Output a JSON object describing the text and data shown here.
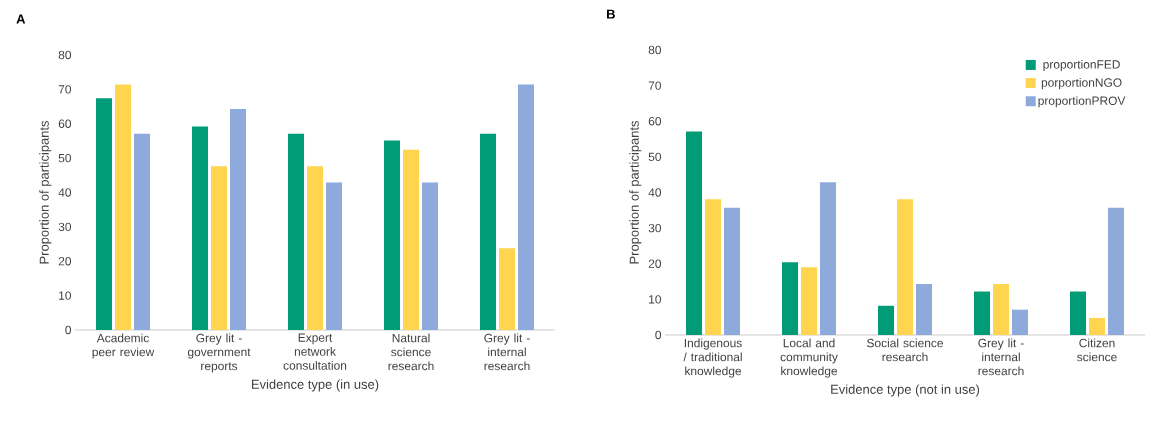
{
  "chart_data": [
    {
      "type": "bar",
      "title": "A",
      "xlabel": "Evidence type (in use)",
      "ylabel": "Proportion of participants",
      "categories": [
        "Academic peer review",
        "Grey lit - government reports",
        "Expert network consultation",
        "Natural science research",
        "Grey lit - internal research"
      ],
      "series": [
        {
          "color": "#009b77",
          "values": [
            67.4,
            59.2,
            57.1,
            55.1,
            57.1
          ]
        },
        {
          "color": "#ffd54f",
          "values": [
            71.4,
            47.6,
            47.6,
            52.4,
            23.8
          ]
        },
        {
          "color": "#8eaadb",
          "values": [
            57.1,
            64.3,
            42.9,
            42.9,
            71.4
          ]
        }
      ],
      "ylim": [
        0,
        80
      ],
      "yticks": [
        0,
        10,
        20,
        30,
        40,
        50,
        60,
        70,
        80
      ]
    },
    {
      "type": "bar",
      "title": "B",
      "xlabel": "Evidence type (not in use)",
      "ylabel": "Proportion of participants",
      "categories": [
        "Indigenous / traditional knowledge",
        "Local and community knowledge",
        "Social science research",
        "Grey lit - internal research",
        "Citizen science"
      ],
      "series": [
        {
          "name": "proportionFED",
          "color": "#009b77",
          "values": [
            57.1,
            20.4,
            8.2,
            12.2,
            12.2
          ]
        },
        {
          "name": "porportionNGO",
          "color": "#ffd54f",
          "values": [
            38.1,
            19.0,
            38.1,
            14.3,
            4.8
          ]
        },
        {
          "name": "proportionPROV",
          "color": "#8eaadb",
          "values": [
            35.7,
            42.9,
            14.3,
            7.1,
            35.7
          ]
        }
      ],
      "ylim": [
        0,
        80
      ],
      "yticks": [
        0,
        10,
        20,
        30,
        40,
        50,
        60,
        70,
        80
      ],
      "legend": "top right"
    }
  ]
}
